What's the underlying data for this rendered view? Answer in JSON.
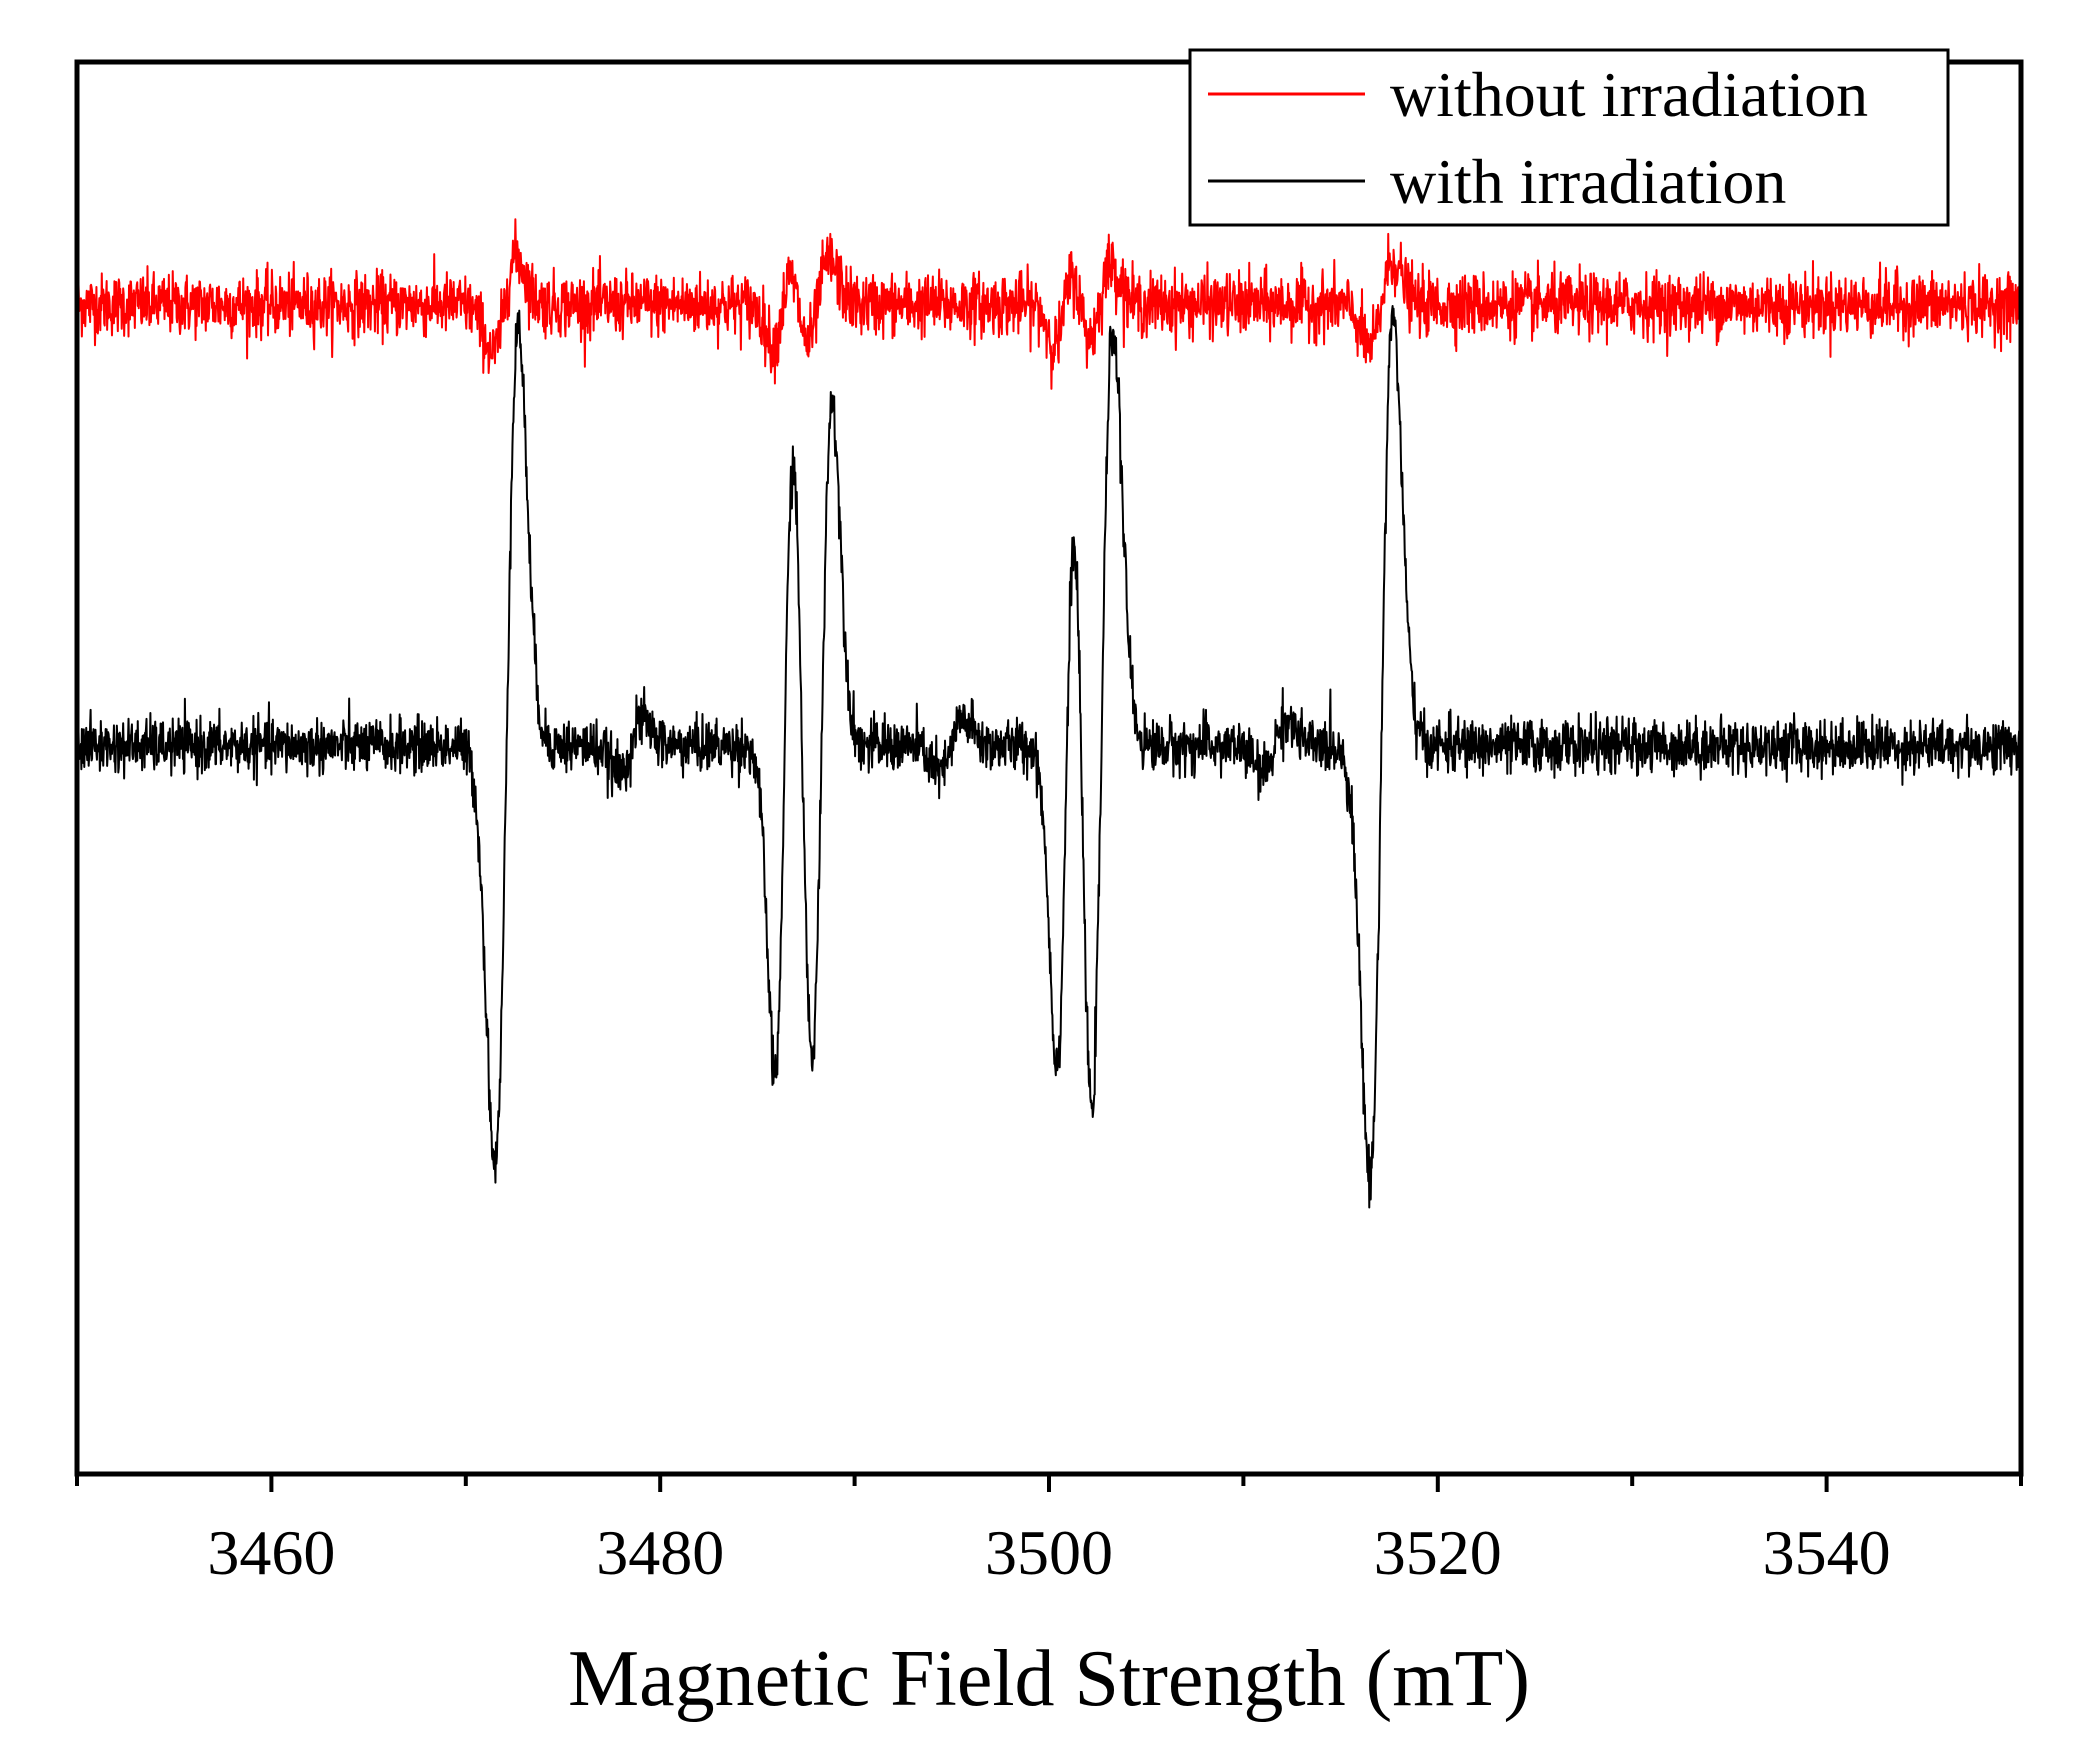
{
  "chart_data": {
    "type": "line",
    "title": "",
    "xlabel": "Magnetic Field Strength (mT)",
    "ylabel": "",
    "xlim": [
      3450,
      3550
    ],
    "xticks": [
      3460,
      3480,
      3500,
      3520,
      3540
    ],
    "minor_xticks": [
      3450,
      3470,
      3490,
      3510,
      3530,
      3550
    ],
    "ylim": [
      -1.65,
      1.55
    ],
    "yticks_visible": false,
    "grid": false,
    "legend_position": "top-right",
    "series": [
      {
        "name": "without irradiation",
        "color": "#ff0000",
        "baseline": 1.0,
        "noise": 0.035,
        "lines": [
          {
            "center": 3472.0,
            "amplitude": 0.11,
            "width": 0.6
          },
          {
            "center": 3486.3,
            "amplitude": 0.09,
            "width": 0.5
          },
          {
            "center": 3488.1,
            "amplitude": 0.1,
            "width": 0.6
          },
          {
            "center": 3500.8,
            "amplitude": 0.09,
            "width": 0.5
          },
          {
            "center": 3502.6,
            "amplitude": 0.09,
            "width": 0.6
          },
          {
            "center": 3517.1,
            "amplitude": 0.1,
            "width": 0.6
          }
        ]
      },
      {
        "name": "with irradiation",
        "color": "#000000",
        "baseline": 0.0,
        "noise": 0.03,
        "lines": [
          {
            "center": 3472.1,
            "amplitude": 0.95,
            "width": 0.6
          },
          {
            "center": 3478.5,
            "amplitude": 0.06,
            "width": 0.6
          },
          {
            "center": 3486.4,
            "amplitude": 0.75,
            "width": 0.5
          },
          {
            "center": 3488.3,
            "amplitude": 0.78,
            "width": 0.55
          },
          {
            "center": 3495.0,
            "amplitude": 0.06,
            "width": 0.6
          },
          {
            "center": 3500.9,
            "amplitude": 0.72,
            "width": 0.5
          },
          {
            "center": 3502.7,
            "amplitude": 0.95,
            "width": 0.6
          },
          {
            "center": 3511.6,
            "amplitude": 0.06,
            "width": 0.6
          },
          {
            "center": 3517.1,
            "amplitude": 0.98,
            "width": 0.6
          }
        ]
      }
    ]
  }
}
